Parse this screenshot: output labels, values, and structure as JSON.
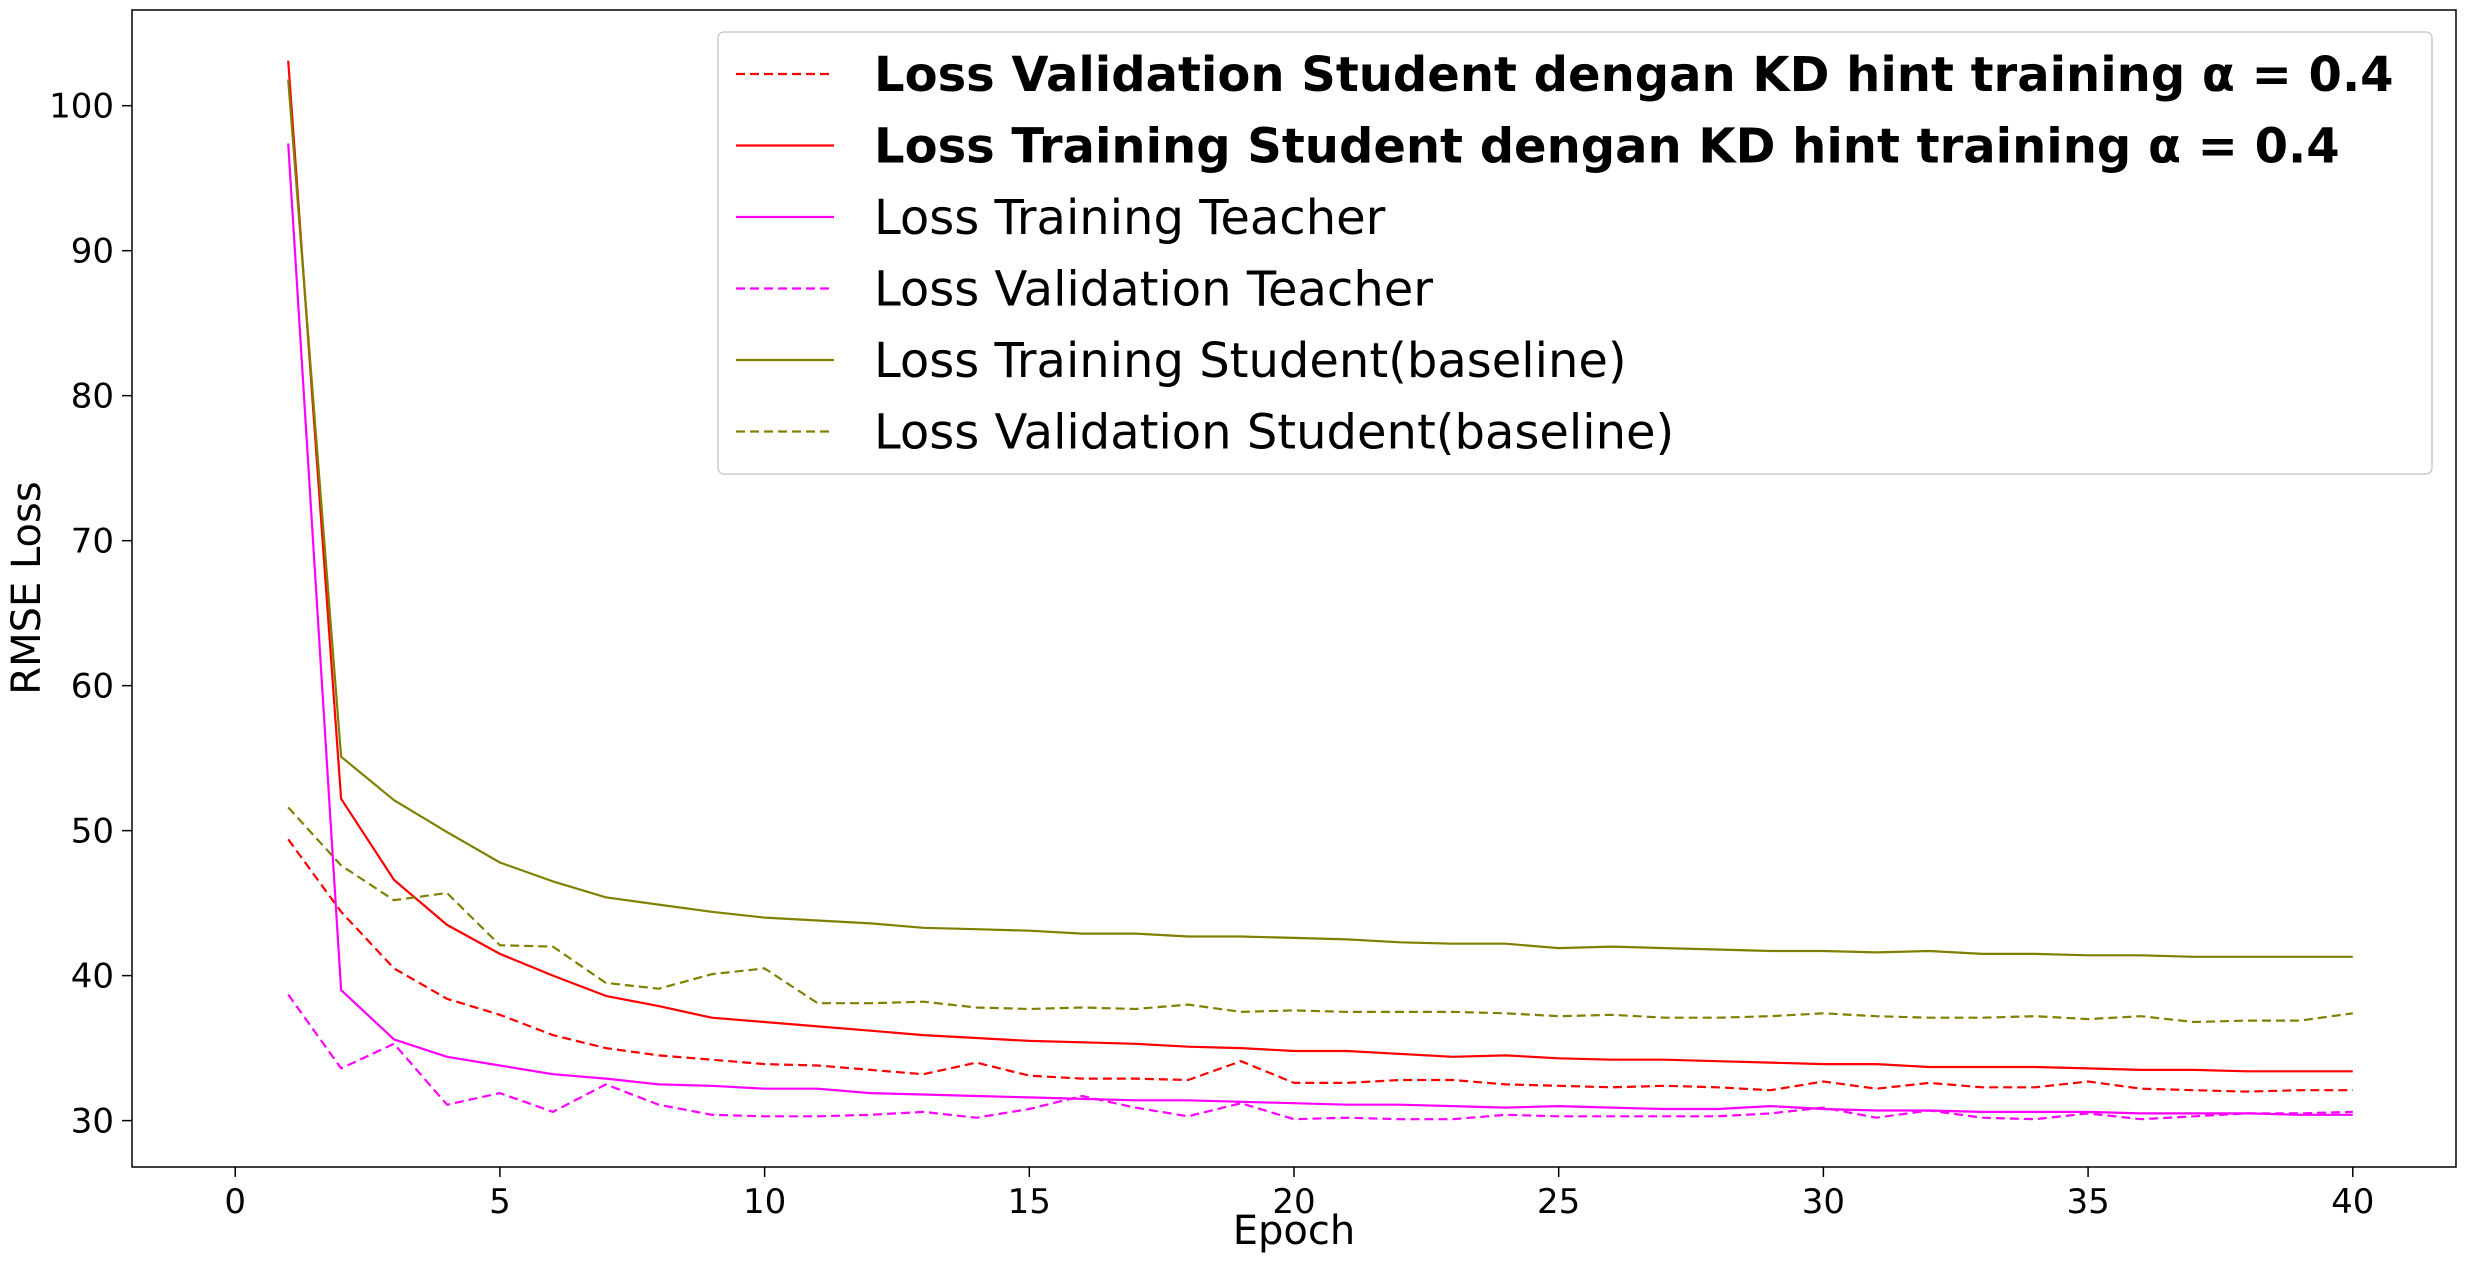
{
  "chart_data": {
    "type": "line",
    "xlabel": "Epoch",
    "ylabel": "RMSE Loss",
    "xlim": [
      -1.95,
      41.95
    ],
    "ylim": [
      26.8,
      106.6
    ],
    "xticks": [
      0,
      5,
      10,
      15,
      20,
      25,
      30,
      35,
      40
    ],
    "yticks": [
      30,
      40,
      50,
      60,
      70,
      80,
      90,
      100
    ],
    "grid": false,
    "legend_position": "top-right",
    "x": [
      1,
      2,
      3,
      4,
      5,
      6,
      7,
      8,
      9,
      10,
      11,
      12,
      13,
      14,
      15,
      16,
      17,
      18,
      19,
      20,
      21,
      22,
      23,
      24,
      25,
      26,
      27,
      28,
      29,
      30,
      31,
      32,
      33,
      34,
      35,
      36,
      37,
      38,
      39,
      40
    ],
    "series": [
      {
        "name": "Loss Validation Student dengan KD hint training α = 0.4",
        "color": "#ff0000",
        "dashed": true,
        "bold": true,
        "values": [
          49.4,
          44.4,
          40.5,
          38.4,
          37.3,
          35.9,
          35.0,
          34.5,
          34.2,
          33.9,
          33.8,
          33.5,
          33.2,
          34.0,
          33.1,
          32.9,
          32.9,
          32.8,
          34.1,
          32.6,
          32.6,
          32.8,
          32.8,
          32.5,
          32.4,
          32.3,
          32.4,
          32.3,
          32.1,
          32.7,
          32.2,
          32.6,
          32.3,
          32.3,
          32.7,
          32.2,
          32.1,
          32.0,
          32.1,
          32.1
        ]
      },
      {
        "name": "Loss Training Student dengan KD hint training α = 0.4",
        "color": "#ff0000",
        "dashed": false,
        "bold": true,
        "values": [
          103.1,
          52.2,
          46.6,
          43.5,
          41.5,
          40.0,
          38.6,
          37.9,
          37.1,
          36.8,
          36.5,
          36.2,
          35.9,
          35.7,
          35.5,
          35.4,
          35.3,
          35.1,
          35.0,
          34.8,
          34.8,
          34.6,
          34.4,
          34.5,
          34.3,
          34.2,
          34.2,
          34.1,
          34.0,
          33.9,
          33.9,
          33.7,
          33.7,
          33.7,
          33.6,
          33.5,
          33.5,
          33.4,
          33.4,
          33.4
        ]
      },
      {
        "name": "Loss Training Teacher",
        "color": "#ff00ff",
        "dashed": false,
        "bold": false,
        "values": [
          97.4,
          39.0,
          35.6,
          34.4,
          33.8,
          33.2,
          32.9,
          32.5,
          32.4,
          32.2,
          32.2,
          31.9,
          31.8,
          31.7,
          31.6,
          31.5,
          31.4,
          31.4,
          31.3,
          31.2,
          31.1,
          31.1,
          31.0,
          30.9,
          31.0,
          30.9,
          30.8,
          30.8,
          31.0,
          30.8,
          30.7,
          30.7,
          30.6,
          30.6,
          30.6,
          30.5,
          30.5,
          30.5,
          30.4,
          30.4
        ]
      },
      {
        "name": "Loss Validation Teacher",
        "color": "#ff00ff",
        "dashed": true,
        "bold": false,
        "values": [
          38.7,
          33.6,
          35.3,
          31.1,
          31.9,
          30.6,
          32.5,
          31.1,
          30.4,
          30.3,
          30.3,
          30.4,
          30.6,
          30.2,
          30.8,
          31.7,
          30.9,
          30.3,
          31.2,
          30.1,
          30.2,
          30.1,
          30.1,
          30.4,
          30.3,
          30.3,
          30.3,
          30.3,
          30.5,
          30.9,
          30.2,
          30.7,
          30.2,
          30.1,
          30.5,
          30.1,
          30.3,
          30.5,
          30.5,
          30.6
        ]
      },
      {
        "name": "Loss Training Student(baseline)",
        "color": "#808000",
        "dashed": false,
        "bold": false,
        "values": [
          101.8,
          55.1,
          52.1,
          49.9,
          47.8,
          46.5,
          45.4,
          44.9,
          44.4,
          44.0,
          43.8,
          43.6,
          43.3,
          43.2,
          43.1,
          42.9,
          42.9,
          42.7,
          42.7,
          42.6,
          42.5,
          42.3,
          42.2,
          42.2,
          41.9,
          42.0,
          41.9,
          41.8,
          41.7,
          41.7,
          41.6,
          41.7,
          41.5,
          41.5,
          41.4,
          41.4,
          41.3,
          41.3,
          41.3,
          41.3
        ]
      },
      {
        "name": "Loss Validation Student(baseline)",
        "color": "#808000",
        "dashed": true,
        "bold": false,
        "values": [
          51.6,
          47.6,
          45.2,
          45.7,
          42.1,
          42.0,
          39.5,
          39.1,
          40.1,
          40.5,
          38.1,
          38.1,
          38.2,
          37.8,
          37.7,
          37.8,
          37.7,
          38.0,
          37.5,
          37.6,
          37.5,
          37.5,
          37.5,
          37.4,
          37.2,
          37.3,
          37.1,
          37.1,
          37.2,
          37.4,
          37.2,
          37.1,
          37.1,
          37.2,
          37.0,
          37.2,
          36.8,
          36.9,
          36.9,
          37.4
        ]
      }
    ]
  }
}
